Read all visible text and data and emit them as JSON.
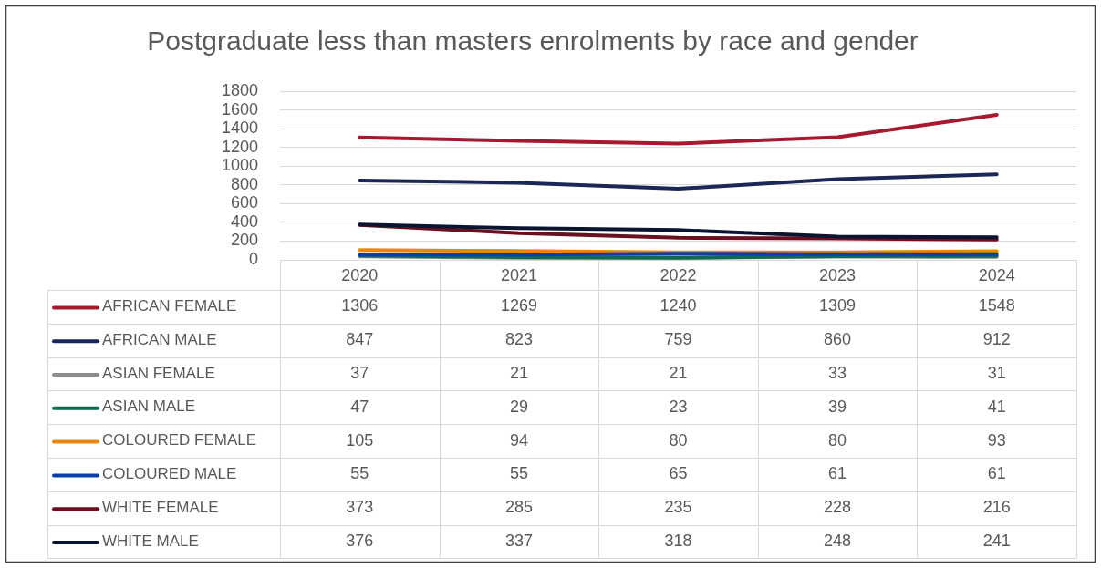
{
  "chart_data": {
    "type": "line",
    "title": "Postgraduate less than masters enrolments by race and gender",
    "categories": [
      "2020",
      "2021",
      "2022",
      "2023",
      "2024"
    ],
    "series": [
      {
        "name": "AFRICAN FEMALE",
        "color": "#a6192e",
        "values": [
          1306,
          1269,
          1240,
          1309,
          1548
        ]
      },
      {
        "name": "AFRICAN MALE",
        "color": "#1b2856",
        "values": [
          847,
          823,
          759,
          860,
          912
        ]
      },
      {
        "name": "ASIAN FEMALE",
        "color": "#8c8c8c",
        "values": [
          37,
          21,
          21,
          33,
          31
        ]
      },
      {
        "name": "ASIAN MALE",
        "color": "#0d6b50",
        "values": [
          47,
          29,
          23,
          39,
          41
        ]
      },
      {
        "name": "COLOURED FEMALE",
        "color": "#e8870a",
        "values": [
          105,
          94,
          80,
          80,
          93
        ]
      },
      {
        "name": "COLOURED MALE",
        "color": "#0a3fa8",
        "values": [
          55,
          55,
          65,
          61,
          61
        ]
      },
      {
        "name": "WHITE FEMALE",
        "color": "#6b1020",
        "values": [
          373,
          285,
          235,
          228,
          216
        ]
      },
      {
        "name": "WHITE MALE",
        "color": "#0c1530",
        "values": [
          376,
          337,
          318,
          248,
          241
        ]
      }
    ],
    "ylim": [
      0,
      1800
    ],
    "yticks": [
      0,
      200,
      400,
      600,
      800,
      1000,
      1200,
      1400,
      1600,
      1800
    ],
    "grid": "y",
    "legend": "bottom",
    "data_labels": true
  }
}
